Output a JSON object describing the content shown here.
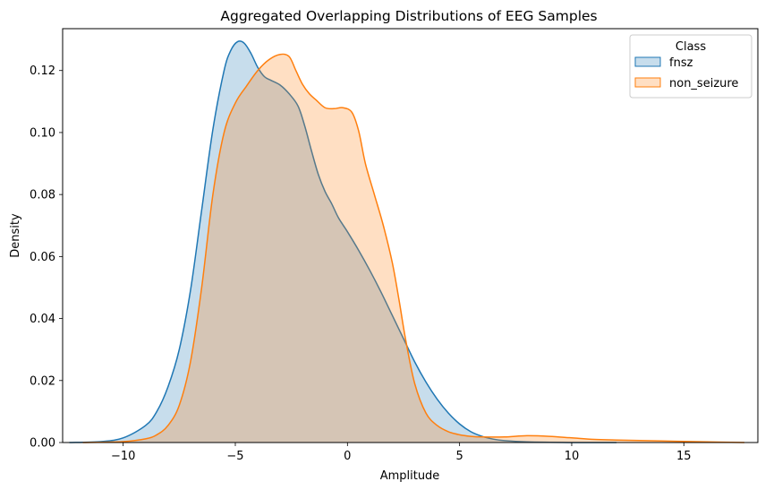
{
  "chart_data": {
    "type": "area",
    "title": "Aggregated Overlapping Distributions of EEG Samples",
    "xlabel": "Amplitude",
    "ylabel": "Density",
    "xlim": [
      -12.7,
      18.3
    ],
    "ylim": [
      0,
      0.1335
    ],
    "x_ticks": [
      -10,
      -5,
      0,
      5,
      10,
      15
    ],
    "x_tick_labels": [
      "−10",
      "−5",
      "0",
      "5",
      "10",
      "15"
    ],
    "y_ticks": [
      0,
      0.02,
      0.04,
      0.06,
      0.08,
      0.1,
      0.12
    ],
    "y_tick_labels": [
      "0.00",
      "0.02",
      "0.04",
      "0.06",
      "0.08",
      "0.10",
      "0.12"
    ],
    "grid": false,
    "legend": {
      "title": "Class",
      "position": "top-right"
    },
    "series": [
      {
        "name": "fnsz",
        "line_color": "#1f77b4",
        "fill_color": "#1f77b4",
        "fill_opacity": 0.25,
        "x": [
          -12.4,
          -11,
          -10,
          -9,
          -8.5,
          -8,
          -7.5,
          -7,
          -6.5,
          -6,
          -5.5,
          -5.2,
          -4.9,
          -4.6,
          -4.3,
          -4,
          -3.7,
          -3.4,
          -3,
          -2.6,
          -2.2,
          -1.9,
          -1.6,
          -1.3,
          -1,
          -0.7,
          -0.4,
          0,
          0.5,
          1,
          1.5,
          2,
          2.5,
          3,
          3.5,
          4,
          4.5,
          5,
          5.5,
          6,
          6.5,
          7,
          8,
          10,
          12
        ],
        "y": [
          0,
          0.0003,
          0.0015,
          0.0055,
          0.01,
          0.018,
          0.03,
          0.049,
          0.075,
          0.101,
          0.12,
          0.1265,
          0.1293,
          0.1288,
          0.1255,
          0.121,
          0.118,
          0.1168,
          0.1153,
          0.1125,
          0.1085,
          0.102,
          0.094,
          0.0865,
          0.081,
          0.077,
          0.0725,
          0.068,
          0.062,
          0.0555,
          0.0485,
          0.041,
          0.0335,
          0.026,
          0.0195,
          0.014,
          0.0095,
          0.006,
          0.0035,
          0.002,
          0.0011,
          0.0006,
          0.0002,
          0,
          0
        ]
      },
      {
        "name": "non_seizure",
        "line_color": "#ff7f0e",
        "fill_color": "#ff7f0e",
        "fill_opacity": 0.25,
        "x": [
          -11.8,
          -10,
          -9,
          -8.5,
          -8,
          -7.5,
          -7,
          -6.5,
          -6,
          -5.5,
          -5,
          -4.5,
          -4,
          -3.5,
          -3,
          -2.6,
          -2.3,
          -2,
          -1.7,
          -1.4,
          -1,
          -0.6,
          -0.2,
          0.2,
          0.5,
          0.8,
          1.2,
          1.6,
          2,
          2.3,
          2.6,
          3,
          3.5,
          4,
          4.5,
          5,
          5.5,
          6,
          7,
          8,
          9,
          10,
          11,
          12,
          14,
          16,
          17.7
        ],
        "y": [
          0,
          0.0003,
          0.0012,
          0.0025,
          0.0055,
          0.012,
          0.026,
          0.05,
          0.08,
          0.1,
          0.1095,
          0.115,
          0.12,
          0.1235,
          0.1252,
          0.1245,
          0.12,
          0.1155,
          0.1125,
          0.1105,
          0.108,
          0.1077,
          0.108,
          0.1065,
          0.1005,
          0.09,
          0.08,
          0.07,
          0.058,
          0.046,
          0.033,
          0.019,
          0.0095,
          0.0055,
          0.0035,
          0.0025,
          0.002,
          0.0018,
          0.0018,
          0.0022,
          0.002,
          0.0015,
          0.001,
          0.0008,
          0.0005,
          0.0002,
          0
        ]
      }
    ]
  }
}
